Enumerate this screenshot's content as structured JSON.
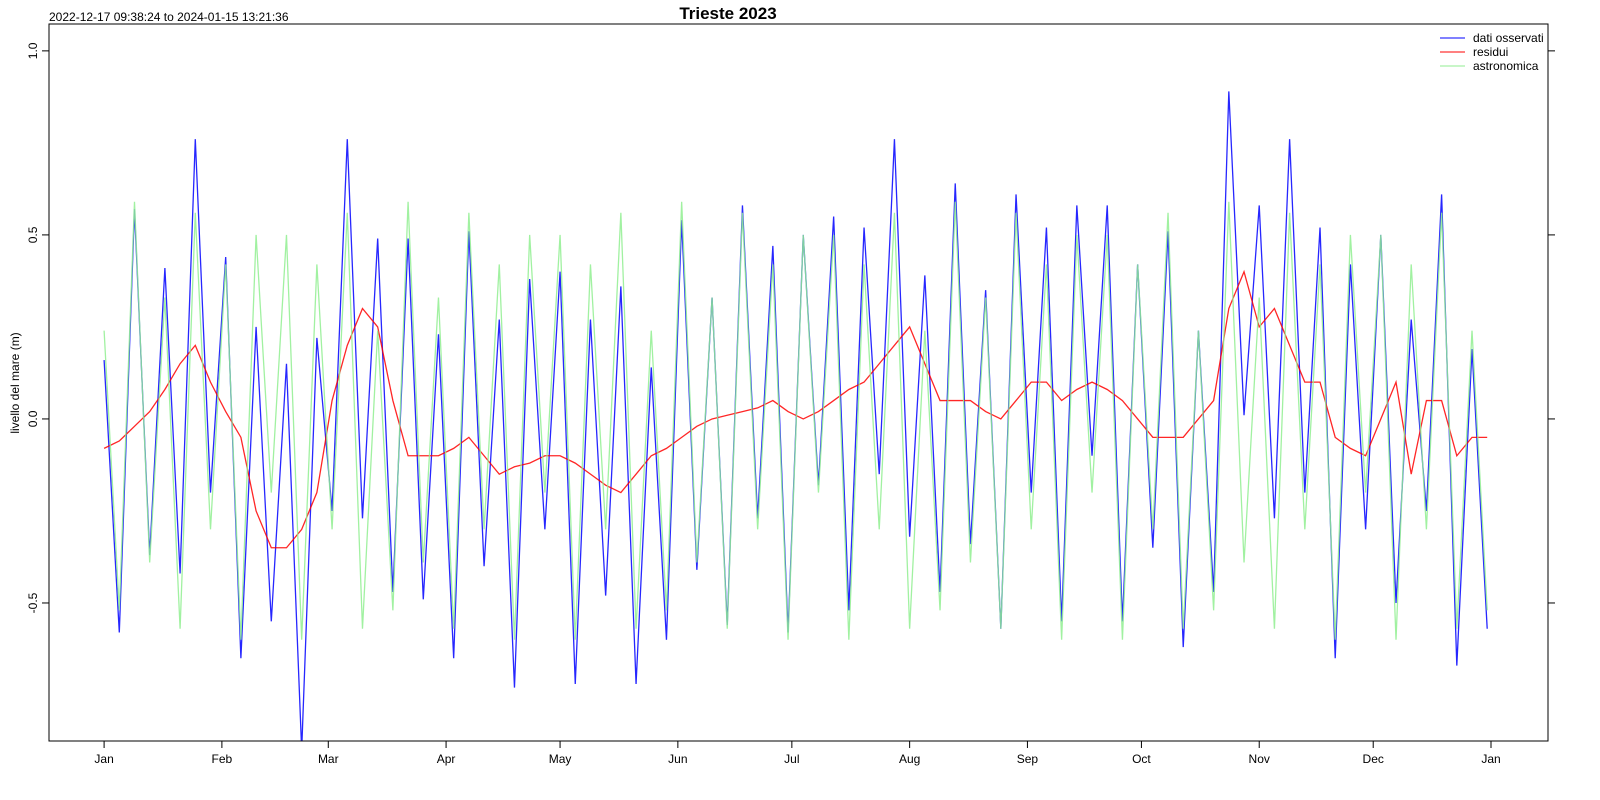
{
  "chart_data": {
    "type": "line",
    "title": "Trieste 2023",
    "subtitle": "2022-12-17 09:38:24 to 2024-01-15 13:21:36",
    "y_label": "livello del mare (m)",
    "legend": "topright",
    "xlim": [
      -14.5,
      380
    ],
    "xticks": [
      {
        "value": 0,
        "label": "Jan"
      },
      {
        "value": 31,
        "label": "Feb"
      },
      {
        "value": 59,
        "label": "Mar"
      },
      {
        "value": 90,
        "label": "Apr"
      },
      {
        "value": 120,
        "label": "May"
      },
      {
        "value": 151,
        "label": "Jun"
      },
      {
        "value": 181,
        "label": "Jul"
      },
      {
        "value": 212,
        "label": "Aug"
      },
      {
        "value": 243,
        "label": "Sep"
      },
      {
        "value": 273,
        "label": "Oct"
      },
      {
        "value": 304,
        "label": "Nov"
      },
      {
        "value": 334,
        "label": "Dec"
      },
      {
        "value": 365,
        "label": "Jan"
      }
    ],
    "ylim": [
      -0.875,
      1.073
    ],
    "yticks": [
      -0.5,
      {
        "value": 0,
        "label": "0.0"
      },
      0.5,
      {
        "value": 1,
        "label": "1.0"
      }
    ],
    "x": [
      0,
      4,
      8,
      12,
      16,
      20,
      24,
      28,
      32,
      36,
      40,
      44,
      48,
      52,
      56,
      60,
      64,
      68,
      72,
      76,
      80,
      84,
      88,
      92,
      96,
      100,
      104,
      108,
      112,
      116,
      120,
      124,
      128,
      132,
      136,
      140,
      144,
      148,
      152,
      156,
      160,
      164,
      168,
      172,
      176,
      180,
      184,
      188,
      192,
      196,
      200,
      204,
      208,
      212,
      216,
      220,
      224,
      228,
      232,
      236,
      240,
      244,
      248,
      252,
      256,
      260,
      264,
      268,
      272,
      276,
      280,
      284,
      288,
      292,
      296,
      300,
      304,
      308,
      312,
      316,
      320,
      324,
      328,
      332,
      336,
      340,
      344,
      348,
      352,
      356,
      360,
      364
    ],
    "series": [
      {
        "name": "dati osservati",
        "color": "#0000ff",
        "values": [
          0.16,
          -0.58,
          0.57,
          -0.37,
          0.41,
          -0.42,
          0.76,
          -0.2,
          0.44,
          -0.65,
          0.25,
          -0.55,
          0.15,
          -0.9,
          0.22,
          -0.25,
          0.76,
          -0.27,
          0.49,
          -0.47,
          0.49,
          -0.49,
          0.23,
          -0.65,
          0.51,
          -0.4,
          0.27,
          -0.73,
          0.38,
          -0.3,
          0.4,
          -0.72,
          0.27,
          -0.48,
          0.36,
          -0.72,
          0.14,
          -0.6,
          0.54,
          -0.41,
          0.33,
          -0.56,
          0.58,
          -0.27,
          0.47,
          -0.58,
          0.5,
          -0.18,
          0.55,
          -0.52,
          0.52,
          -0.15,
          0.76,
          -0.32,
          0.39,
          -0.47,
          0.64,
          -0.34,
          0.35,
          -0.57,
          0.61,
          -0.2,
          0.52,
          -0.55,
          0.58,
          -0.1,
          0.58,
          -0.55,
          0.42,
          -0.35,
          0.51,
          -0.62,
          0.24,
          -0.47,
          0.89,
          0.01,
          0.58,
          -0.27,
          0.76,
          -0.2,
          0.52,
          -0.65,
          0.42,
          -0.3,
          0.5,
          -0.5,
          0.27,
          -0.25,
          0.61,
          -0.67,
          0.19,
          -0.57
        ]
      },
      {
        "name": "residui",
        "color": "#ff0000",
        "values": [
          -0.08,
          -0.06,
          -0.02,
          0.02,
          0.08,
          0.15,
          0.2,
          0.1,
          0.02,
          -0.05,
          -0.25,
          -0.35,
          -0.35,
          -0.3,
          -0.2,
          0.05,
          0.2,
          0.3,
          0.25,
          0.05,
          -0.1,
          -0.1,
          -0.1,
          -0.08,
          -0.05,
          -0.1,
          -0.15,
          -0.13,
          -0.12,
          -0.1,
          -0.1,
          -0.12,
          -0.15,
          -0.18,
          -0.2,
          -0.15,
          -0.1,
          -0.08,
          -0.05,
          -0.02,
          0,
          0.01,
          0.02,
          0.03,
          0.05,
          0.02,
          0,
          0.02,
          0.05,
          0.08,
          0.1,
          0.15,
          0.2,
          0.25,
          0.15,
          0.05,
          0.05,
          0.05,
          0.02,
          0,
          0.05,
          0.1,
          0.1,
          0.05,
          0.08,
          0.1,
          0.08,
          0.05,
          0,
          -0.05,
          -0.05,
          -0.05,
          0,
          0.05,
          0.3,
          0.4,
          0.25,
          0.3,
          0.2,
          0.1,
          0.1,
          -0.05,
          -0.08,
          -0.1,
          0,
          0.1,
          -0.15,
          0.05,
          0.05,
          -0.1,
          -0.05,
          -0.05
        ]
      },
      {
        "name": "astronomica",
        "color": "#90ee90",
        "values": [
          0.24,
          -0.52,
          0.59,
          -0.39,
          0.33,
          -0.57,
          0.56,
          -0.3,
          0.42,
          -0.6,
          0.5,
          -0.2,
          0.5,
          -0.6,
          0.42,
          -0.3,
          0.56,
          -0.57,
          0.24,
          -0.52,
          0.59,
          -0.39,
          0.33,
          -0.57,
          0.56,
          -0.3,
          0.42,
          -0.6,
          0.5,
          -0.2,
          0.5,
          -0.6,
          0.42,
          -0.3,
          0.56,
          -0.57,
          0.24,
          -0.52,
          0.59,
          -0.39,
          0.33,
          -0.57,
          0.56,
          -0.3,
          0.42,
          -0.6,
          0.5,
          -0.2,
          0.5,
          -0.6,
          0.42,
          -0.3,
          0.56,
          -0.57,
          0.24,
          -0.52,
          0.59,
          -0.39,
          0.33,
          -0.57,
          0.56,
          -0.3,
          0.42,
          -0.6,
          0.5,
          -0.2,
          0.5,
          -0.6,
          0.42,
          -0.3,
          0.56,
          -0.57,
          0.24,
          -0.52,
          0.59,
          -0.39,
          0.33,
          -0.57,
          0.56,
          -0.3,
          0.42,
          -0.6,
          0.5,
          -0.2,
          0.5,
          -0.6,
          0.42,
          -0.3,
          0.56,
          -0.57,
          0.24,
          -0.52
        ]
      }
    ]
  }
}
